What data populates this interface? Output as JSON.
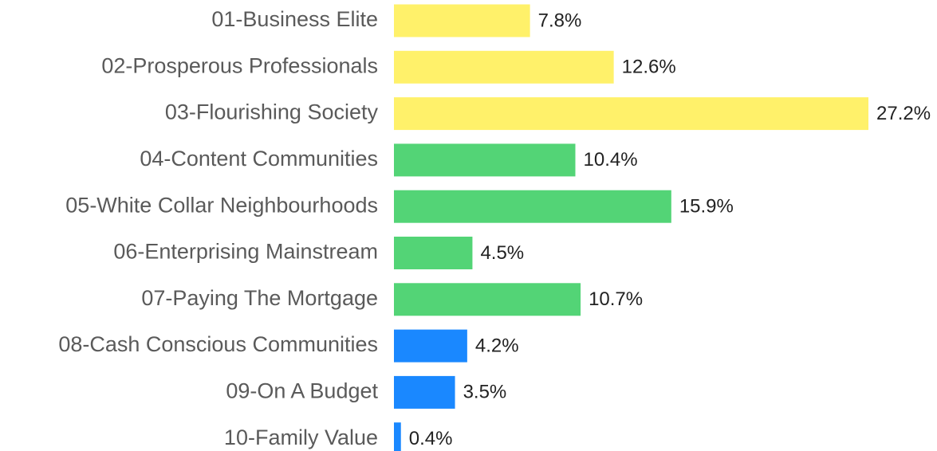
{
  "chart_data": {
    "type": "bar",
    "orientation": "horizontal",
    "categories": [
      "01-Business Elite",
      "02-Prosperous Professionals",
      "03-Flourishing Society",
      "04-Content Communities",
      "05-White Collar Neighbourhoods",
      "06-Enterprising Mainstream",
      "07-Paying The Mortgage",
      "08-Cash Conscious Communities",
      "09-On A Budget",
      "10-Family Value"
    ],
    "values": [
      7.8,
      12.6,
      27.2,
      10.4,
      15.9,
      4.5,
      10.7,
      4.2,
      3.5,
      0.4
    ],
    "value_labels": [
      "7.8%",
      "12.6%",
      "27.2%",
      "10.4%",
      "15.9%",
      "4.5%",
      "10.7%",
      "4.2%",
      "3.5%",
      "0.4%"
    ],
    "colors": [
      "#fff16a",
      "#fff16a",
      "#fff16a",
      "#53d476",
      "#53d476",
      "#53d476",
      "#53d476",
      "#1a88ff",
      "#1a88ff",
      "#1a88ff"
    ],
    "grid": false
  }
}
